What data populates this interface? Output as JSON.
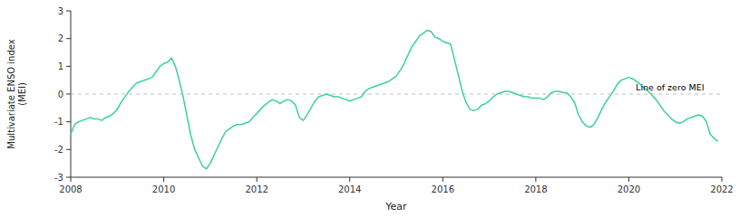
{
  "chart_data": {
    "type": "line",
    "title": "",
    "xlabel": "Year",
    "ylabel": "Multivariate ENSO index\n(MEI)",
    "xlim": [
      2008,
      2022
    ],
    "ylim": [
      -3,
      3
    ],
    "xticks": [
      2008,
      2010,
      2012,
      2014,
      2016,
      2018,
      2020,
      2022
    ],
    "yticks": [
      -3,
      -2,
      -1,
      0,
      1,
      2,
      3
    ],
    "grid": false,
    "color": "#3ecfa0",
    "reference_lines": [
      {
        "y": 0,
        "color": "#c0c0c0",
        "line_style": "dashed"
      }
    ],
    "annotations": [
      {
        "text": "Line of zero MEI",
        "x": 2020.15,
        "y": 0.07
      }
    ],
    "x": [
      2008.0,
      2008.083,
      2008.167,
      2008.25,
      2008.333,
      2008.417,
      2008.5,
      2008.583,
      2008.667,
      2008.75,
      2008.833,
      2008.917,
      2009.0,
      2009.083,
      2009.167,
      2009.25,
      2009.333,
      2009.417,
      2009.5,
      2009.583,
      2009.667,
      2009.75,
      2009.833,
      2009.917,
      2010.0,
      2010.083,
      2010.167,
      2010.25,
      2010.333,
      2010.417,
      2010.5,
      2010.583,
      2010.667,
      2010.75,
      2010.833,
      2010.917,
      2011.0,
      2011.083,
      2011.167,
      2011.25,
      2011.333,
      2011.417,
      2011.5,
      2011.583,
      2011.667,
      2011.75,
      2011.833,
      2011.917,
      2012.0,
      2012.083,
      2012.167,
      2012.25,
      2012.333,
      2012.417,
      2012.5,
      2012.583,
      2012.667,
      2012.75,
      2012.833,
      2012.917,
      2013.0,
      2013.083,
      2013.167,
      2013.25,
      2013.333,
      2013.417,
      2013.5,
      2013.583,
      2013.667,
      2013.75,
      2013.833,
      2013.917,
      2014.0,
      2014.083,
      2014.167,
      2014.25,
      2014.333,
      2014.417,
      2014.5,
      2014.583,
      2014.667,
      2014.75,
      2014.833,
      2014.917,
      2015.0,
      2015.083,
      2015.167,
      2015.25,
      2015.333,
      2015.417,
      2015.5,
      2015.583,
      2015.667,
      2015.75,
      2015.833,
      2015.917,
      2016.0,
      2016.083,
      2016.167,
      2016.25,
      2016.333,
      2016.417,
      2016.5,
      2016.583,
      2016.667,
      2016.75,
      2016.833,
      2016.917,
      2017.0,
      2017.083,
      2017.167,
      2017.25,
      2017.333,
      2017.417,
      2017.5,
      2017.583,
      2017.667,
      2017.75,
      2017.833,
      2017.917,
      2018.0,
      2018.083,
      2018.167,
      2018.25,
      2018.333,
      2018.417,
      2018.5,
      2018.583,
      2018.667,
      2018.75,
      2018.833,
      2018.917,
      2019.0,
      2019.083,
      2019.167,
      2019.25,
      2019.333,
      2019.417,
      2019.5,
      2019.583,
      2019.667,
      2019.75,
      2019.833,
      2019.917,
      2020.0,
      2020.083,
      2020.167,
      2020.25,
      2020.333,
      2020.417,
      2020.5,
      2020.583,
      2020.667,
      2020.75,
      2020.833,
      2020.917,
      2021.0,
      2021.083,
      2021.167,
      2021.25,
      2021.333,
      2021.417,
      2021.5,
      2021.583,
      2021.667,
      2021.75,
      2021.833,
      2021.917
    ],
    "values": [
      -1.45,
      -1.1,
      -1.0,
      -0.95,
      -0.9,
      -0.85,
      -0.9,
      -0.9,
      -0.95,
      -0.85,
      -0.8,
      -0.7,
      -0.55,
      -0.3,
      -0.1,
      0.1,
      0.25,
      0.4,
      0.45,
      0.5,
      0.55,
      0.6,
      0.8,
      1.0,
      1.1,
      1.15,
      1.3,
      1.0,
      0.5,
      -0.1,
      -0.8,
      -1.5,
      -2.0,
      -2.3,
      -2.6,
      -2.7,
      -2.5,
      -2.2,
      -1.9,
      -1.6,
      -1.35,
      -1.25,
      -1.15,
      -1.1,
      -1.1,
      -1.05,
      -1.0,
      -0.85,
      -0.7,
      -0.55,
      -0.4,
      -0.3,
      -0.2,
      -0.25,
      -0.35,
      -0.25,
      -0.2,
      -0.25,
      -0.4,
      -0.85,
      -0.95,
      -0.75,
      -0.5,
      -0.25,
      -0.1,
      -0.05,
      0.0,
      -0.05,
      -0.1,
      -0.1,
      -0.15,
      -0.2,
      -0.25,
      -0.2,
      -0.15,
      -0.1,
      0.1,
      0.2,
      0.25,
      0.3,
      0.35,
      0.4,
      0.45,
      0.55,
      0.65,
      0.85,
      1.1,
      1.4,
      1.7,
      1.9,
      2.1,
      2.2,
      2.3,
      2.25,
      2.05,
      2.0,
      1.9,
      1.85,
      1.8,
      1.25,
      0.7,
      0.1,
      -0.3,
      -0.55,
      -0.6,
      -0.55,
      -0.4,
      -0.35,
      -0.25,
      -0.1,
      0.0,
      0.05,
      0.1,
      0.1,
      0.05,
      0.0,
      -0.05,
      -0.1,
      -0.1,
      -0.15,
      -0.15,
      -0.15,
      -0.2,
      -0.1,
      0.05,
      0.1,
      0.1,
      0.05,
      0.05,
      -0.1,
      -0.3,
      -0.75,
      -1.0,
      -1.15,
      -1.2,
      -1.1,
      -0.85,
      -0.55,
      -0.3,
      -0.1,
      0.1,
      0.35,
      0.5,
      0.55,
      0.6,
      0.55,
      0.45,
      0.35,
      0.2,
      0.1,
      -0.05,
      -0.2,
      -0.4,
      -0.6,
      -0.75,
      -0.9,
      -1.0,
      -1.05,
      -1.0,
      -0.9,
      -0.85,
      -0.8,
      -0.75,
      -0.8,
      -1.0,
      -1.45,
      -1.6,
      -1.7
    ]
  }
}
